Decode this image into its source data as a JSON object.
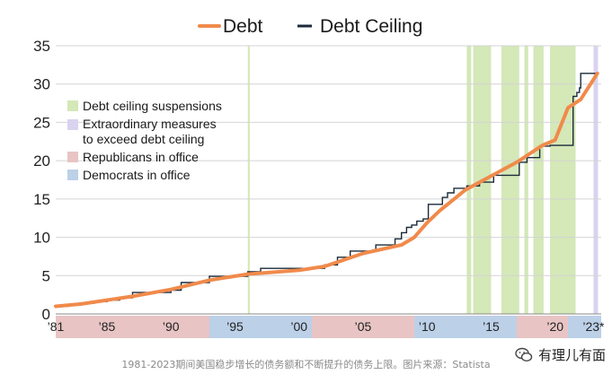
{
  "chart_data": {
    "type": "line",
    "title": "",
    "xlabel": "",
    "ylabel": "",
    "xlim": [
      1981,
      2023.6
    ],
    "ylim": [
      0,
      35
    ],
    "yticks": [
      0,
      5,
      10,
      15,
      20,
      25,
      30,
      35
    ],
    "xtick_labels": [
      {
        "x": 1981,
        "label": "’81"
      },
      {
        "x": 1985,
        "label": "’85"
      },
      {
        "x": 1990,
        "label": "’90"
      },
      {
        "x": 1995,
        "label": "’95"
      },
      {
        "x": 2000,
        "label": "’00"
      },
      {
        "x": 2005,
        "label": "’05"
      },
      {
        "x": 2010,
        "label": "’10"
      },
      {
        "x": 2015,
        "label": "’15"
      },
      {
        "x": 2020,
        "label": "’20"
      },
      {
        "x": 2023,
        "label": "’23*"
      }
    ],
    "legend_top": [
      {
        "name": "Debt",
        "color": "#f08a4b"
      },
      {
        "name": "Debt Ceiling",
        "color": "#1a2a3a"
      }
    ],
    "legend_inner": [
      {
        "name": "Debt ceiling suspensions",
        "color": "#d4e8b8"
      },
      {
        "name": "Extraordinary measures to exceed debt ceiling",
        "lines": [
          "Extraordinary measures",
          "to exceed debt ceiling"
        ],
        "color": "#d9d3f0"
      },
      {
        "name": "Republicans in office",
        "color": "#e8c4c4"
      },
      {
        "name": "Democrats in office",
        "color": "#bcd0e8"
      }
    ],
    "series": [
      {
        "name": "Debt",
        "color": "#f08a4b",
        "x": [
          1981,
          1983,
          1985,
          1987,
          1990,
          1993,
          1996,
          2000,
          2002,
          2005,
          2008,
          2009,
          2010,
          2011,
          2013,
          2015,
          2017,
          2019,
          2020,
          2021,
          2022,
          2023.3
        ],
        "y": [
          1.0,
          1.3,
          1.8,
          2.3,
          3.2,
          4.4,
          5.2,
          5.7,
          6.2,
          7.9,
          9.0,
          10.0,
          11.9,
          13.5,
          16.2,
          18.0,
          19.8,
          22.0,
          22.7,
          26.9,
          28.0,
          31.4
        ]
      },
      {
        "name": "Debt Ceiling",
        "color": "#1a2a3a",
        "step": true,
        "x": [
          1981,
          1982,
          1983,
          1984,
          1985,
          1986,
          1987,
          1990,
          1990.8,
          1993,
          1996,
          1997,
          2002,
          2003,
          2004,
          2005,
          2006,
          2007.5,
          2008,
          2008.4,
          2008.8,
          2009.2,
          2009.7,
          2010.1,
          2011.2,
          2011.6,
          2012.1,
          2013.1,
          2014.1,
          2015.2,
          2017.2,
          2017.8,
          2018.8,
          2019.6,
          2021.4,
          2021.7,
          2021.9,
          2022.0,
          2023.4
        ],
        "y": [
          1.0,
          1.2,
          1.4,
          1.6,
          1.8,
          2.1,
          2.8,
          3.1,
          4.1,
          4.9,
          5.5,
          5.95,
          6.4,
          7.4,
          8.2,
          8.2,
          9.0,
          9.8,
          10.6,
          11.3,
          11.6,
          12.1,
          12.4,
          14.3,
          15.2,
          15.8,
          16.4,
          16.7,
          17.2,
          18.1,
          19.8,
          20.4,
          21.9,
          22.0,
          28.4,
          28.9,
          29.5,
          31.4,
          31.4
        ]
      }
    ],
    "bands": [
      {
        "kind": "suspension",
        "from": 2013.1,
        "to": 2013.45
      },
      {
        "kind": "suspension",
        "from": 2013.6,
        "to": 2015.0
      },
      {
        "kind": "suspension",
        "from": 2015.8,
        "to": 2017.2
      },
      {
        "kind": "suspension",
        "from": 2017.6,
        "to": 2017.9
      },
      {
        "kind": "suspension",
        "from": 2018.3,
        "to": 2019.1
      },
      {
        "kind": "suspension",
        "from": 2019.6,
        "to": 2021.6
      },
      {
        "kind": "suspension",
        "from": 1996.0,
        "to": 1996.15
      },
      {
        "kind": "extraordinary",
        "from": 2023.0,
        "to": 2023.35
      }
    ],
    "party_bar": [
      {
        "party": "Republicans",
        "from": 1981,
        "to": 1993
      },
      {
        "party": "Democrats",
        "from": 1993,
        "to": 2001
      },
      {
        "party": "Republicans",
        "from": 2001,
        "to": 2009
      },
      {
        "party": "Democrats",
        "from": 2009,
        "to": 2017
      },
      {
        "party": "Republicans",
        "from": 2017,
        "to": 2021
      },
      {
        "party": "Democrats",
        "from": 2021,
        "to": 2023.6
      }
    ]
  },
  "colors": {
    "debt": "#f08a4b",
    "ceiling": "#1a2a3a",
    "suspension": "#d4e8b8",
    "extraordinary": "#d9d3f0",
    "republicans": "#e8c4c4",
    "democrats": "#bcd0e8",
    "grid": "#d4d4d4"
  },
  "caption": "1981-2023期间美国稳步增长的债务额和不断提升的债务上限。图片来源：Statista",
  "watermark": {
    "text": "有理儿有面",
    "icon": "wechat-icon"
  }
}
